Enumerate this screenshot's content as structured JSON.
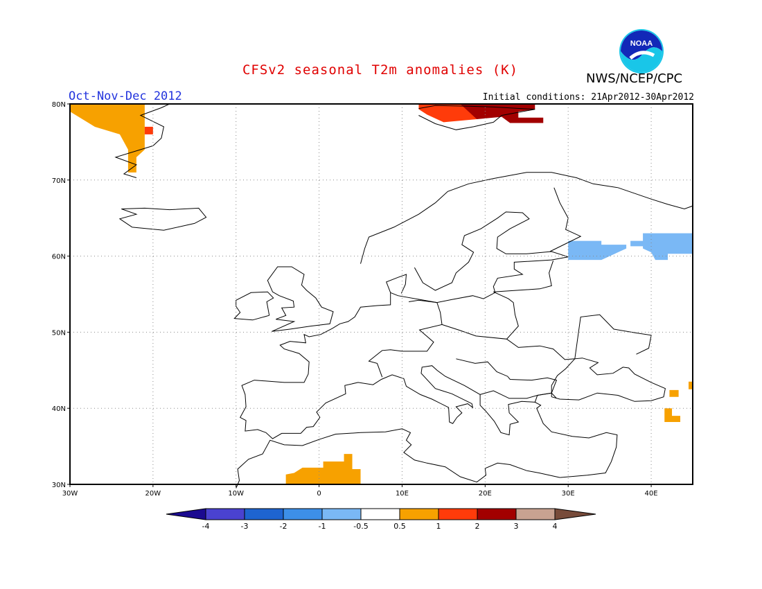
{
  "header": {
    "title": "CFSv2 seasonal T2m anomalies (K)",
    "agency": "NWS/NCEP/CPC",
    "season": "Oct-Nov-Dec 2012",
    "initial_conditions": "Initial conditions: 21Apr2012-30Apr2012",
    "logo_text": "NOAA"
  },
  "map": {
    "lon_range": [
      -30,
      45
    ],
    "lat_range": [
      30,
      80
    ],
    "x_ticks": [
      {
        "lon": -30,
        "label": "30W"
      },
      {
        "lon": -20,
        "label": "20W"
      },
      {
        "lon": -10,
        "label": "10W"
      },
      {
        "lon": 0,
        "label": "0"
      },
      {
        "lon": 10,
        "label": "10E"
      },
      {
        "lon": 20,
        "label": "20E"
      },
      {
        "lon": 30,
        "label": "30E"
      },
      {
        "lon": 40,
        "label": "40E"
      }
    ],
    "y_ticks": [
      {
        "lat": 80,
        "label": "80N"
      },
      {
        "lat": 70,
        "label": "70N"
      },
      {
        "lat": 60,
        "label": "60N"
      },
      {
        "lat": 50,
        "label": "50N"
      },
      {
        "lat": 40,
        "label": "40N"
      },
      {
        "lat": 30,
        "label": "30N"
      }
    ],
    "grid": "dotted",
    "anomaly_regions": [
      {
        "name": "greenland-east-warm",
        "category": "0.5 to 1",
        "lon": [
          -30,
          -21
        ],
        "lat": [
          71,
          80
        ]
      },
      {
        "name": "greenland-east-strong",
        "category": "1 to 2",
        "lon": [
          -21,
          -20
        ],
        "lat": [
          76,
          77
        ]
      },
      {
        "name": "svalbard-warm",
        "category": "1 to 2",
        "lon": [
          13,
          19
        ],
        "lat": [
          77,
          80
        ]
      },
      {
        "name": "svalbard-strong",
        "category": "2 to 3",
        "lon": [
          18,
          26
        ],
        "lat": [
          77,
          80
        ]
      },
      {
        "name": "nw-russia-cool",
        "category": "-1 to -0.5",
        "lon": [
          30,
          45
        ],
        "lat": [
          59,
          63
        ]
      },
      {
        "name": "north-africa-warm",
        "category": "0.5 to 1",
        "lon": [
          -4,
          5
        ],
        "lat": [
          30,
          34
        ]
      },
      {
        "name": "caucasus-warm",
        "category": "0.5 to 1",
        "lon": [
          42,
          45
        ],
        "lat": [
          38,
          43
        ]
      }
    ]
  },
  "colorbar": {
    "colors": [
      "#1b0a90",
      "#4a42d0",
      "#1e64d0",
      "#3d8fe8",
      "#7ab8f5",
      "#ffffff",
      "#f7a100",
      "#ff3b0a",
      "#a20000",
      "#c8a291",
      "#774b3a"
    ],
    "labels": [
      "-4",
      "-3",
      "-2",
      "-1",
      "-0.5",
      "0.5",
      "1",
      "2",
      "3",
      "4"
    ]
  }
}
